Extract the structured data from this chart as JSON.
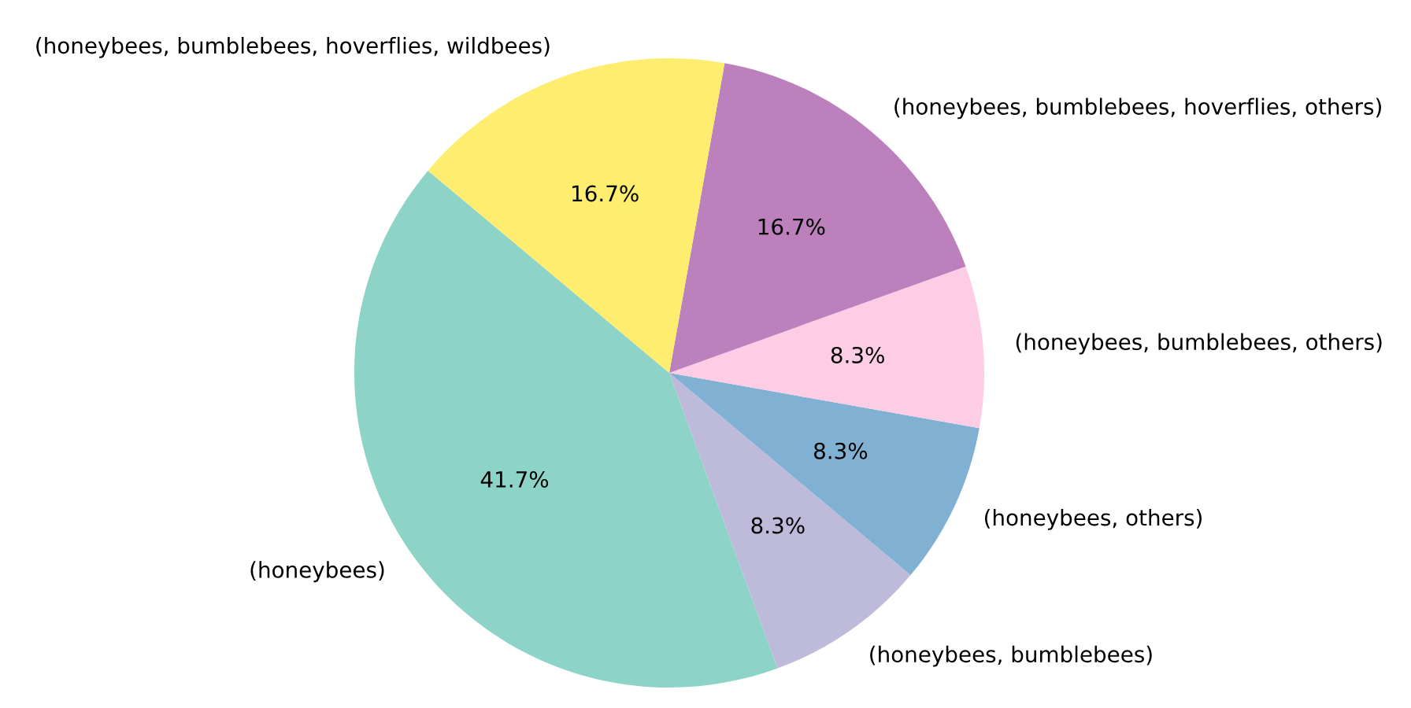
{
  "chart_data": {
    "type": "pie",
    "categories": [
      "(honeybees)",
      "(honeybees, bumblebees)",
      "(honeybees, others)",
      "(honeybees, bumblebees, others)",
      "(honeybees, bumblebees, hoverflies, others)",
      "(honeybees, bumblebees, hoverflies, wildbees)"
    ],
    "values": [
      41.7,
      8.3,
      8.3,
      8.3,
      16.7,
      16.7
    ],
    "value_labels": [
      "41.7%",
      "8.3%",
      "8.3%",
      "8.3%",
      "16.7%",
      "16.7%"
    ],
    "colors": [
      "#8dd3c7",
      "#bebada",
      "#80b1d3",
      "#fccde5",
      "#bc80bd",
      "#ffed6f"
    ]
  }
}
